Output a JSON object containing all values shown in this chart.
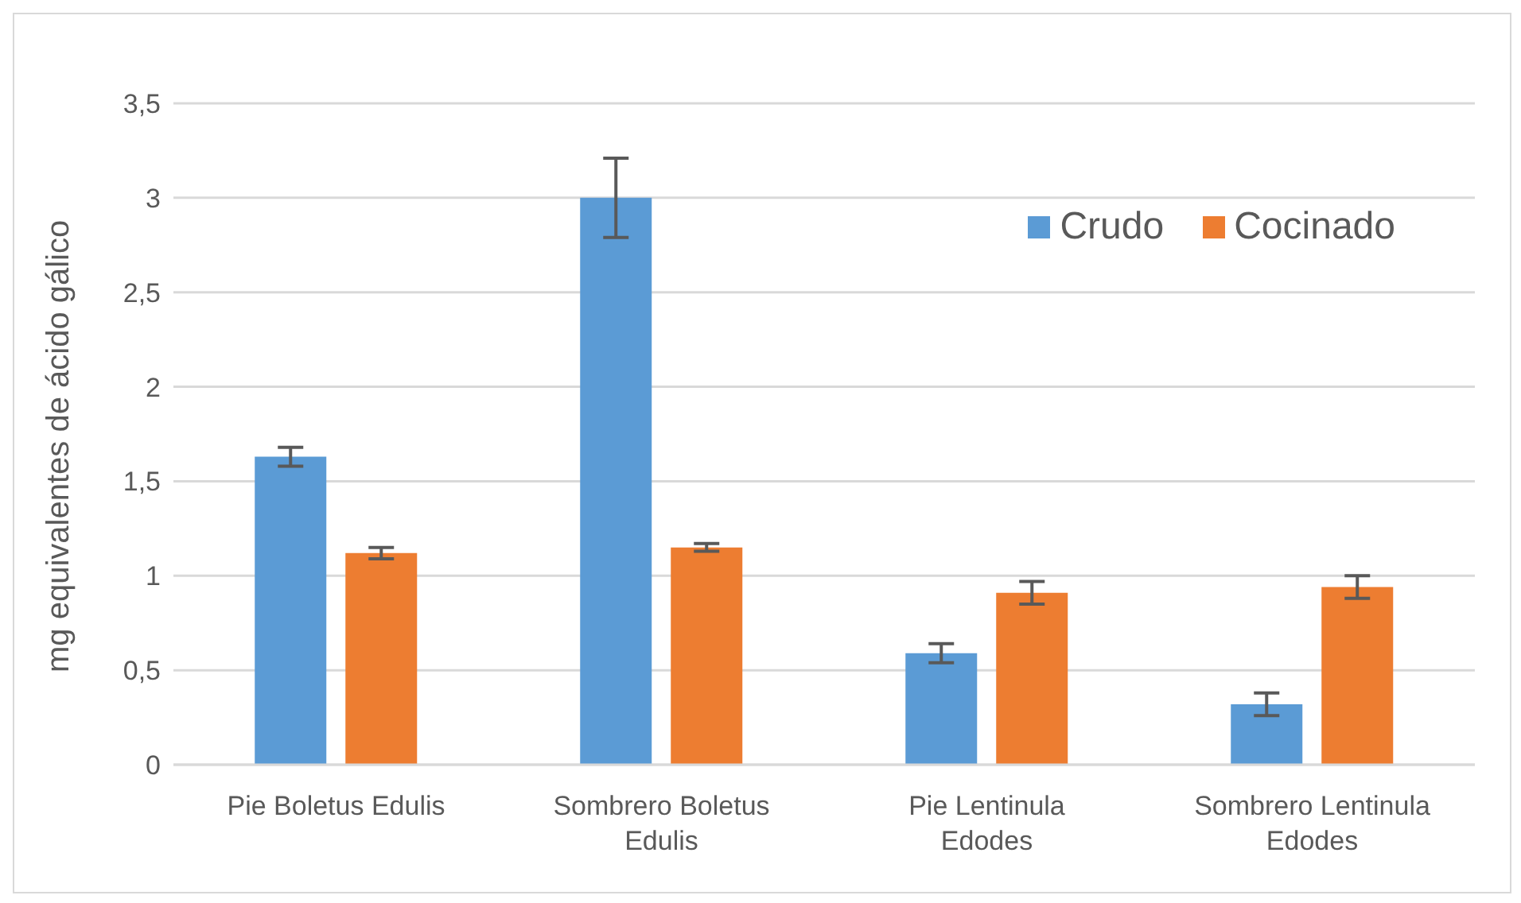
{
  "chart_data": {
    "type": "bar",
    "ylabel": "mg equivalentes de ácido gálico",
    "categories": [
      "Pie Boletus Edulis",
      "Sombrero Boletus Edulis",
      "Pie Lentinula Edodes",
      "Sombrero Lentinula Edodes"
    ],
    "series": [
      {
        "name": "Crudo",
        "color": "#5b9bd5",
        "values": [
          1.63,
          3.0,
          0.59,
          0.32
        ],
        "errors": [
          0.05,
          0.21,
          0.05,
          0.06
        ]
      },
      {
        "name": "Cocinado",
        "color": "#ed7d31",
        "values": [
          1.12,
          1.15,
          0.91,
          0.94
        ],
        "errors": [
          0.03,
          0.02,
          0.06,
          0.06
        ]
      }
    ],
    "ylim": [
      0,
      3.5
    ],
    "yticks": [
      0,
      {
        "value": 0.5,
        "label": "0,5"
      },
      1,
      {
        "value": 1.5,
        "label": "1,5"
      },
      2,
      {
        "value": 2.5,
        "label": "2,5"
      },
      3,
      {
        "value": 3.5,
        "label": "3,5"
      }
    ],
    "grid": "y",
    "legend": "top right"
  }
}
